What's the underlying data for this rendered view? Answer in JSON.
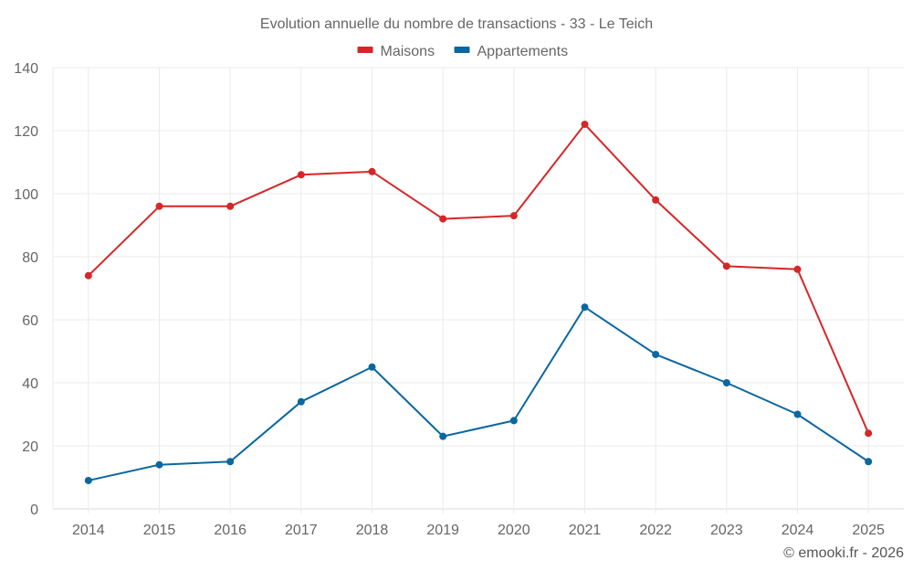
{
  "chart_data": {
    "type": "line",
    "title": "Evolution annuelle du nombre de transactions - 33 - Le Teich",
    "xlabel": "",
    "ylabel": "",
    "categories": [
      "2014",
      "2015",
      "2016",
      "2017",
      "2018",
      "2019",
      "2020",
      "2021",
      "2022",
      "2023",
      "2024",
      "2025"
    ],
    "series": [
      {
        "name": "Maisons",
        "color": "#d62728",
        "values": [
          74,
          96,
          96,
          106,
          107,
          92,
          93,
          122,
          98,
          77,
          76,
          24
        ]
      },
      {
        "name": "Appartements",
        "color": "#0b67a0",
        "values": [
          9,
          14,
          15,
          34,
          45,
          23,
          28,
          64,
          49,
          40,
          30,
          15
        ]
      }
    ],
    "ylim": [
      0,
      140
    ],
    "yticks": [
      0,
      20,
      40,
      60,
      80,
      100,
      120,
      140
    ],
    "grid": true,
    "legend": "top-center",
    "credit": "© emooki.fr - 2026"
  }
}
